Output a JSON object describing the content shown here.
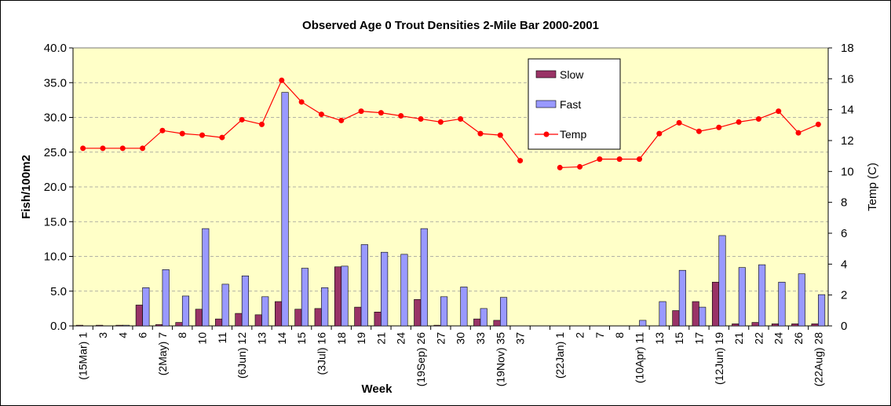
{
  "chart_data": {
    "type": "bar-line",
    "title": "Observed Age 0 Trout Densities 2-Mile Bar 2000-2001",
    "x_label": "Week",
    "y_label": "Fish/100m2",
    "y2_label": "Temp (C)",
    "categories": [
      "(15Mar) 1",
      "3",
      "4",
      "6",
      "(2May) 7",
      "8",
      "10",
      "11",
      "(6Jun) 12",
      "13",
      "14",
      "15",
      "(3Jul) 16",
      "18",
      "19",
      "21",
      "24",
      "(19Sep) 26",
      "27",
      "30",
      "33",
      "(19Nov) 35",
      "37",
      null,
      "(22Jan) 1",
      "2",
      "7",
      "8",
      "(10Apr) 11",
      "13",
      "15",
      "17",
      "(12Jun) 19",
      "21",
      "22",
      "24",
      "26",
      "(22Aug) 28"
    ],
    "series": [
      {
        "name": "Slow",
        "type": "bar",
        "color": "#993366",
        "values": [
          0.1,
          0.1,
          0.1,
          3.0,
          0.2,
          0.5,
          2.4,
          1.0,
          1.8,
          1.6,
          3.5,
          2.4,
          2.5,
          8.5,
          2.7,
          2.0,
          0,
          3.8,
          0.1,
          0,
          1.0,
          0.8,
          0,
          null,
          0,
          0,
          0,
          0,
          0,
          0,
          2.2,
          3.5,
          6.3,
          0.3,
          0.5,
          0.3,
          0.3,
          0.3
        ]
      },
      {
        "name": "Fast",
        "type": "bar",
        "color": "#9999ff",
        "values": [
          0,
          0,
          0.1,
          5.5,
          8.1,
          4.3,
          14.0,
          6.0,
          7.2,
          4.2,
          33.6,
          8.3,
          5.5,
          8.6,
          11.7,
          10.6,
          10.3,
          14.0,
          4.2,
          5.6,
          2.5,
          4.1,
          0,
          null,
          0,
          0,
          0,
          0,
          0.8,
          3.5,
          8.0,
          2.7,
          13.0,
          8.4,
          8.8,
          6.3,
          7.5,
          4.5
        ]
      },
      {
        "name": "Temp",
        "type": "line",
        "axis": "y2",
        "color": "#ff0000",
        "values": [
          11.5,
          11.5,
          11.5,
          11.5,
          12.65,
          12.45,
          12.35,
          12.2,
          13.35,
          13.05,
          15.9,
          14.5,
          13.7,
          13.3,
          13.9,
          13.8,
          13.6,
          13.4,
          13.2,
          13.4,
          12.45,
          12.35,
          10.7,
          null,
          10.25,
          10.3,
          10.8,
          10.8,
          10.8,
          12.45,
          13.15,
          12.6,
          12.85,
          13.2,
          13.4,
          13.9,
          12.5,
          13.05
        ]
      }
    ],
    "ylim": [
      0,
      40
    ],
    "yticks": [
      {
        "value": 0,
        "label": "0.0"
      },
      {
        "value": 5,
        "label": "5.0"
      },
      {
        "value": 10,
        "label": "10.0"
      },
      {
        "value": 15,
        "label": "15.0"
      },
      {
        "value": 20,
        "label": "20.0"
      },
      {
        "value": 25,
        "label": "25.0"
      },
      {
        "value": 30,
        "label": "30.0"
      },
      {
        "value": 35,
        "label": "35.0"
      },
      {
        "value": 40,
        "label": "40.0"
      }
    ],
    "y2lim": [
      0,
      18
    ],
    "y2ticks": [
      0,
      2,
      4,
      6,
      8,
      10,
      12,
      14,
      16,
      18
    ],
    "grid": true,
    "legend": "top-right",
    "background": "#ffffc8"
  }
}
